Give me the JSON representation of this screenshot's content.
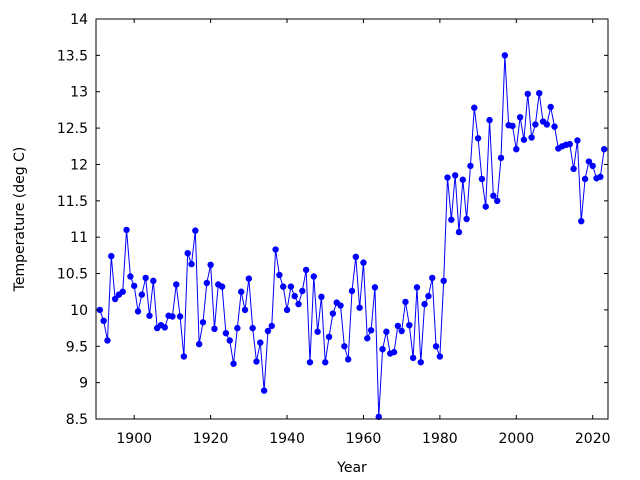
{
  "chart_data": {
    "type": "line",
    "title": "",
    "xlabel": "Year",
    "ylabel": "Temperature (deg C)",
    "xlim": [
      1890,
      2024
    ],
    "ylim": [
      8.5,
      14
    ],
    "grid": false,
    "legend": "none",
    "x_ticks": [
      1900,
      1920,
      1940,
      1960,
      1980,
      2000,
      2020
    ],
    "x_tick_labels": [
      "1900",
      "1920",
      "1940",
      "1960",
      "1980",
      "2000",
      "2020"
    ],
    "y_ticks": [
      8.5,
      9,
      9.5,
      10,
      10.5,
      11,
      11.5,
      12,
      12.5,
      13,
      13.5,
      14
    ],
    "y_tick_labels": [
      "8.5",
      "9",
      "9.5",
      "10",
      "10.5",
      "11",
      "11.5",
      "12",
      "12.5",
      "13",
      "13.5",
      "14"
    ],
    "series": [
      {
        "color": "#0000ff",
        "marker": "circle",
        "x": [
          1891,
          1892,
          1893,
          1894,
          1895,
          1896,
          1897,
          1898,
          1899,
          1900,
          1901,
          1902,
          1903,
          1904,
          1905,
          1906,
          1907,
          1908,
          1909,
          1910,
          1911,
          1912,
          1913,
          1914,
          1915,
          1916,
          1917,
          1918,
          1919,
          1920,
          1921,
          1922,
          1923,
          1924,
          1925,
          1926,
          1927,
          1928,
          1929,
          1930,
          1931,
          1932,
          1933,
          1934,
          1935,
          1936,
          1937,
          1938,
          1939,
          1940,
          1941,
          1942,
          1943,
          1944,
          1945,
          1946,
          1947,
          1948,
          1949,
          1950,
          1951,
          1952,
          1953,
          1954,
          1955,
          1956,
          1957,
          1958,
          1959,
          1960,
          1961,
          1962,
          1963,
          1964,
          1965,
          1966,
          1967,
          1968,
          1969,
          1970,
          1971,
          1972,
          1973,
          1974,
          1975,
          1976,
          1977,
          1978,
          1979,
          1980,
          1981,
          1982,
          1983,
          1984,
          1985,
          1986,
          1987,
          1988,
          1989,
          1990,
          1991,
          1992,
          1993,
          1994,
          1995,
          1996,
          1997,
          1998,
          1999,
          2000,
          2001,
          2002,
          2003,
          2004,
          2005,
          2006,
          2007,
          2008,
          2009,
          2010,
          2011,
          2012,
          2013,
          2014,
          2015,
          2016,
          2017,
          2018,
          2019,
          2020,
          2021,
          2022,
          2023
        ],
        "y": [
          10.0,
          9.85,
          9.58,
          10.74,
          10.15,
          10.21,
          10.25,
          11.1,
          10.46,
          10.33,
          9.98,
          10.21,
          10.44,
          9.92,
          10.4,
          9.75,
          9.79,
          9.76,
          9.92,
          9.91,
          10.35,
          9.91,
          9.36,
          10.78,
          10.63,
          11.09,
          9.53,
          9.83,
          10.37,
          10.62,
          9.74,
          10.35,
          10.32,
          9.68,
          9.58,
          9.26,
          9.75,
          10.25,
          10.0,
          10.43,
          9.75,
          9.29,
          9.55,
          8.89,
          9.71,
          9.78,
          10.83,
          10.48,
          10.32,
          10.0,
          10.32,
          10.19,
          10.08,
          10.26,
          10.55,
          9.28,
          10.46,
          9.7,
          10.18,
          9.28,
          9.63,
          9.95,
          10.1,
          10.06,
          9.5,
          9.32,
          10.26,
          10.73,
          10.03,
          10.65,
          9.61,
          9.72,
          10.31,
          8.53,
          9.46,
          9.7,
          9.4,
          9.42,
          9.78,
          9.71,
          10.11,
          9.79,
          9.34,
          10.31,
          9.28,
          10.08,
          10.19,
          10.44,
          9.5,
          9.36,
          10.4,
          11.82,
          11.24,
          11.85,
          11.07,
          11.79,
          11.25,
          11.98,
          12.78,
          12.36,
          11.8,
          11.42,
          12.61,
          11.57,
          11.5,
          12.09,
          13.5,
          12.54,
          12.53,
          12.21,
          12.65,
          12.34,
          12.97,
          12.37,
          12.55,
          12.98,
          12.59,
          12.55,
          12.79,
          12.52,
          12.22,
          12.25,
          12.27,
          12.28,
          11.94,
          12.33,
          11.22,
          11.8,
          12.04,
          11.98,
          11.81,
          11.83,
          12.21
        ]
      }
    ]
  }
}
